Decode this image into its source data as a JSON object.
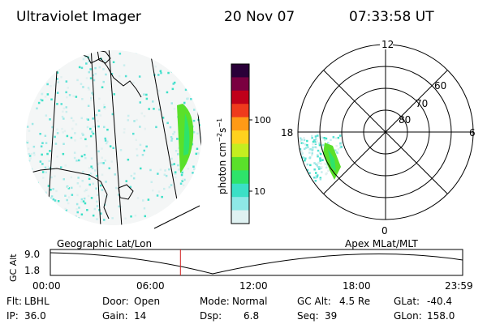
{
  "header": {
    "instrument": "Ultraviolet Imager",
    "date": "20 Nov 07",
    "time": "07:33:58 UT"
  },
  "colorbar": {
    "label": "photon cm",
    "label_exp1": "−2",
    "label_s": "s",
    "label_exp2": "−1",
    "ticks": [
      "100",
      "10"
    ],
    "colors": [
      "#2a0038",
      "#7a0040",
      "#c0001a",
      "#ef3a1c",
      "#ff9a16",
      "#ffd21e",
      "#c4ee20",
      "#5ae02a",
      "#2ee36a",
      "#3be0c6",
      "#8ee8e6",
      "#dff2f2"
    ]
  },
  "geo_panel": {
    "label": "Geographic Lat/Lon"
  },
  "polar_panel": {
    "label": "Apex MLat/MLT",
    "mlt_labels": {
      "top": "12",
      "left": "18",
      "right": "6",
      "bottom": "0"
    },
    "lat_labels": [
      "60",
      "70",
      "80"
    ]
  },
  "altitude_plot": {
    "ylabel": "GC Alt",
    "yticks": [
      "9.0",
      "1.8"
    ],
    "xticks": [
      "00:00",
      "06:00",
      "12:00",
      "18:00",
      "23:59"
    ],
    "current_time_marker_hour": 7.566
  },
  "status": {
    "flt_label": "Flt:",
    "flt_value": "LBHL",
    "ip_label": "IP:",
    "ip_value": "36.0",
    "door_label": "Door:",
    "door_value": "Open",
    "gain_label": "Gain:",
    "gain_value": "14",
    "mode_label": "Mode:",
    "mode_value": "Normal",
    "dsp_label": "Dsp:",
    "dsp_value": "6.8",
    "gcalt_label": "GC Alt:",
    "gcalt_value": "4.5 Re",
    "seq_label": "Seq:",
    "seq_value": "39",
    "glat_label": "GLat:",
    "glat_value": "-40.4",
    "glon_label": "GLon:",
    "glon_value": "158.0"
  }
}
